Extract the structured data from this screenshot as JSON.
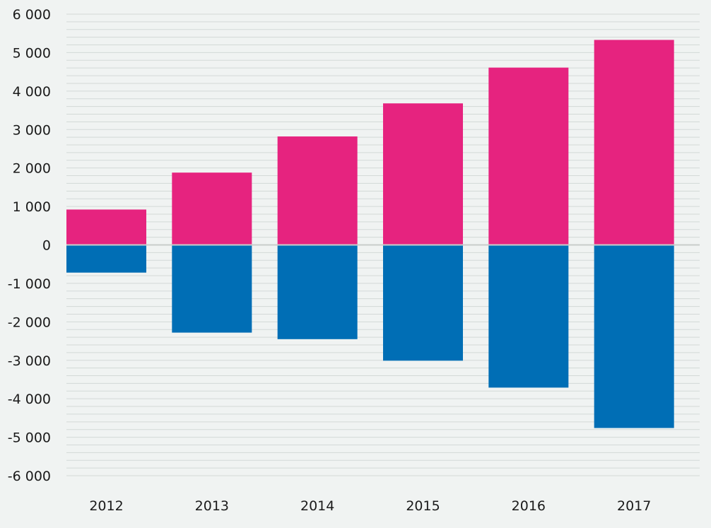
{
  "chart_data": {
    "type": "bar",
    "stacked": true,
    "categories": [
      "2012",
      "2013",
      "2014",
      "2015",
      "2016",
      "2017"
    ],
    "series": [
      {
        "color": "#e6237f",
        "values": [
          920,
          1880,
          2820,
          3680,
          4610,
          5330
        ]
      },
      {
        "color": "#006eb5",
        "values": [
          -720,
          -2280,
          -2450,
          -3010,
          -3710,
          -4760
        ]
      }
    ],
    "ylim": [
      -6000,
      6000
    ],
    "y_ticks": [
      6000,
      5000,
      4000,
      3000,
      2000,
      1000,
      0,
      -1000,
      -2000,
      -3000,
      -4000,
      -5000,
      -6000
    ],
    "y_tick_labels": [
      "6 000",
      "5 000",
      "4 000",
      "3 000",
      "2 000",
      "1 000",
      "0",
      "-1 000",
      "-2 000",
      "-3 000",
      "-4 000",
      "-5 000",
      "-6 000"
    ],
    "minor_grid_step": 200,
    "grid": true,
    "grid_color": "#d3d9d7",
    "zero_line_color": "#c8cccb",
    "background": "#f0f3f2",
    "legend": "none"
  }
}
